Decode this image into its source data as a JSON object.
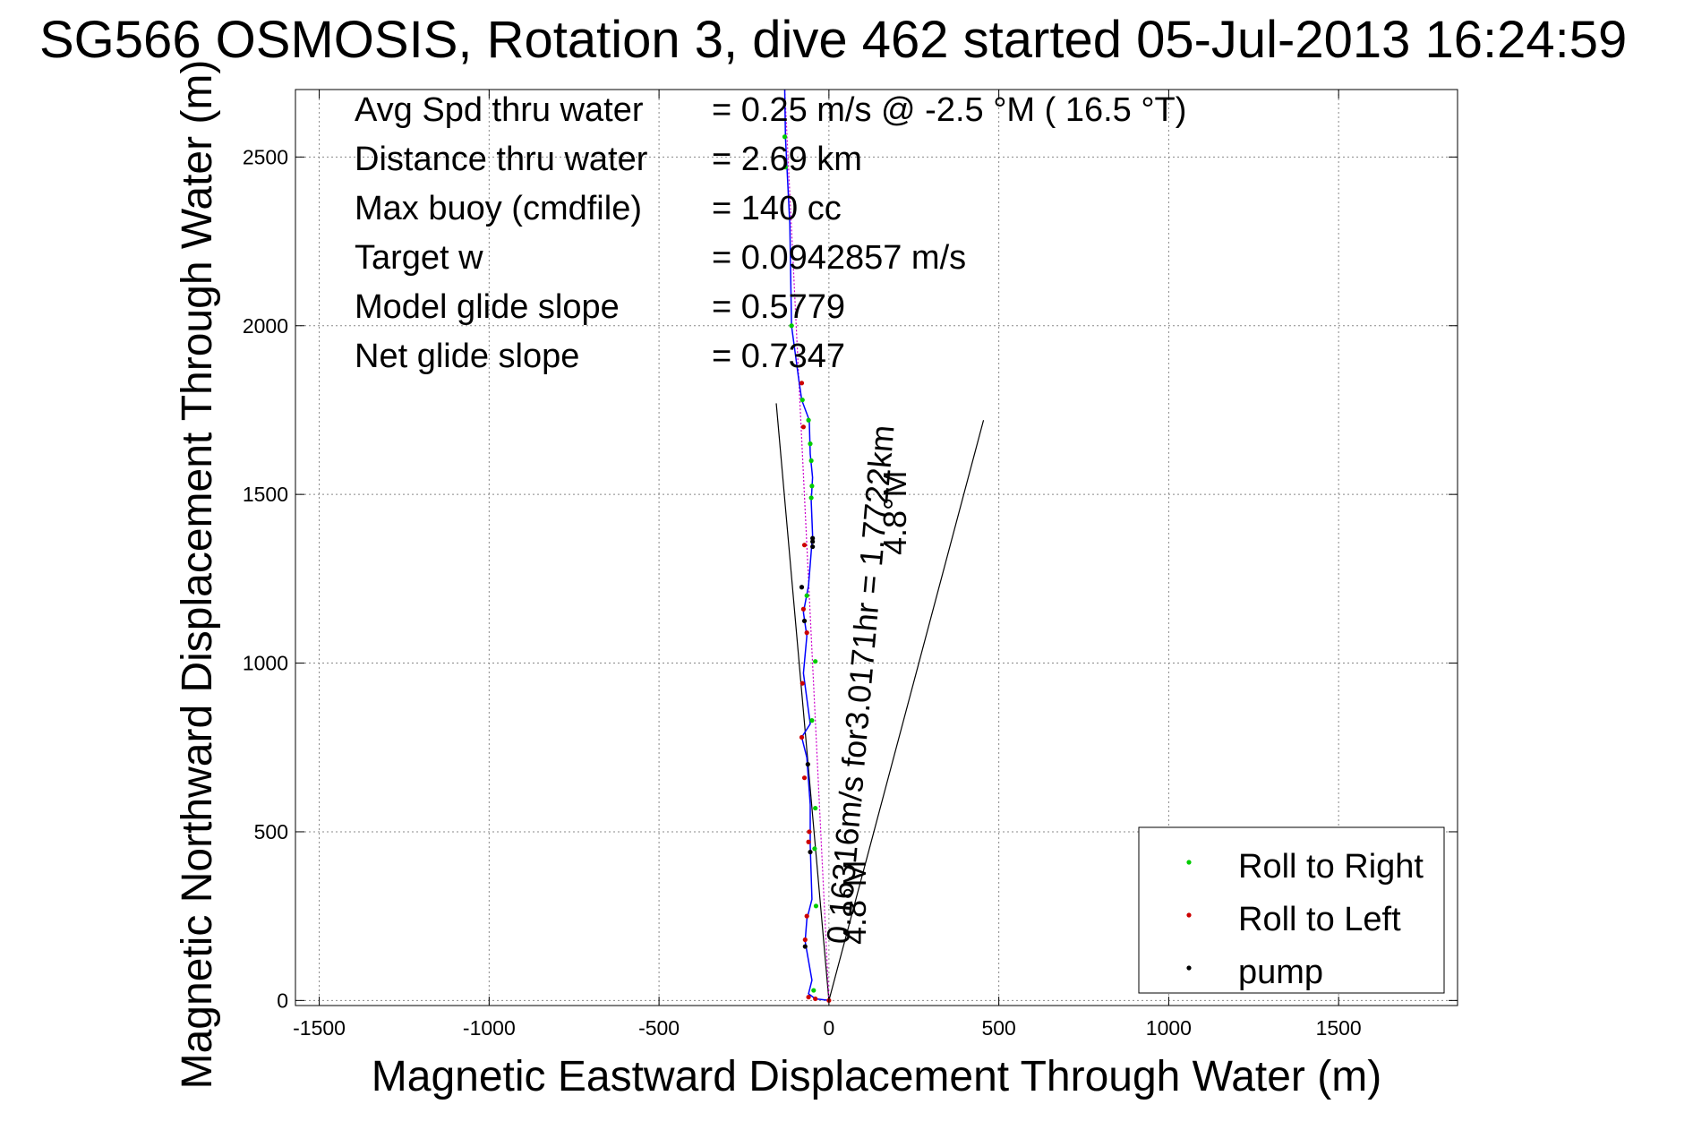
{
  "chart_data": {
    "type": "scatter",
    "title": "SG566 OSMOSIS, Rotation 3, dive 462 started 05-Jul-2013 16:24:59",
    "xlabel": "Magnetic Eastward Displacement Through Water (m)",
    "ylabel": "Magnetic Northward Displacement Through Water (m)",
    "xlim": [
      -1570,
      1850
    ],
    "ylim": [
      -15,
      2700
    ],
    "grid": true,
    "xticks": [
      -1500,
      -1000,
      -500,
      0,
      500,
      1000,
      1500
    ],
    "yticks": [
      0,
      500,
      1000,
      1500,
      2000,
      2500
    ],
    "xtick_labels": [
      "-1500",
      "-1000",
      "-500",
      "0",
      "500",
      "1000",
      "1500"
    ],
    "ytick_labels": [
      "0",
      "500",
      "1000",
      "1500",
      "2000",
      "2500"
    ],
    "colors": {
      "track": "#0000ff",
      "roll_right": "#00cc00",
      "roll_left": "#cc0000",
      "pump": "#000000",
      "bearing_line": "#cc00cc",
      "cone": "#000000"
    },
    "info_lines": [
      {
        "label": "Avg Spd thru water",
        "value": "=  0.25 m/s @  -2.5 °M ( 16.5 °T)"
      },
      {
        "label": "Distance thru water",
        "value": "=  2.69 km"
      },
      {
        "label": "Max buoy (cmdfile)",
        "value": "= 140 cc"
      },
      {
        "label": "Target w",
        "value": "= 0.0942857 m/s"
      },
      {
        "label": "Model glide slope",
        "value": "= 0.5779"
      },
      {
        "label": "Net glide slope",
        "value": "= 0.7347"
      }
    ],
    "annotations": {
      "current_text": "0.16316m/s for3.0171hr = 1.7722km",
      "current_heading_lower": "4.8°M",
      "current_heading_upper": "4.8°M"
    },
    "series": [
      {
        "name": "Roll to Right",
        "points": [
          [
            -130,
            2560
          ],
          [
            -128,
            2470
          ],
          [
            -110,
            2000
          ],
          [
            -78,
            1780
          ],
          [
            -60,
            1720
          ],
          [
            -55,
            1650
          ],
          [
            -52,
            1600
          ],
          [
            -50,
            1525
          ],
          [
            -52,
            1490
          ],
          [
            -65,
            1200
          ],
          [
            -40,
            1005
          ],
          [
            -50,
            830
          ],
          [
            -40,
            570
          ],
          [
            -42,
            450
          ],
          [
            -38,
            280
          ],
          [
            -45,
            30
          ]
        ]
      },
      {
        "name": "Roll to Left",
        "points": [
          [
            -80,
            1830
          ],
          [
            -75,
            1700
          ],
          [
            -72,
            1350
          ],
          [
            -75,
            1160
          ],
          [
            -65,
            1090
          ],
          [
            -78,
            940
          ],
          [
            -80,
            780
          ],
          [
            -72,
            660
          ],
          [
            -58,
            500
          ],
          [
            -60,
            470
          ],
          [
            -65,
            250
          ],
          [
            -70,
            180
          ],
          [
            -60,
            10
          ],
          [
            -40,
            5
          ],
          [
            0,
            0
          ]
        ]
      },
      {
        "name": "pump",
        "points": [
          [
            -48,
            1370
          ],
          [
            -48,
            1360
          ],
          [
            -48,
            1345
          ],
          [
            -80,
            1225
          ],
          [
            -72,
            1125
          ],
          [
            -62,
            700
          ],
          [
            -55,
            440
          ],
          [
            -70,
            160
          ]
        ]
      }
    ],
    "track": [
      [
        -130,
        2700
      ],
      [
        -128,
        2560
      ],
      [
        -115,
        2300
      ],
      [
        -110,
        2000
      ],
      [
        -90,
        1850
      ],
      [
        -80,
        1780
      ],
      [
        -58,
        1720
      ],
      [
        -55,
        1620
      ],
      [
        -48,
        1550
      ],
      [
        -52,
        1480
      ],
      [
        -48,
        1380
      ],
      [
        -60,
        1230
      ],
      [
        -75,
        1150
      ],
      [
        -65,
        1080
      ],
      [
        -75,
        970
      ],
      [
        -55,
        820
      ],
      [
        -80,
        780
      ],
      [
        -65,
        720
      ],
      [
        -55,
        580
      ],
      [
        -55,
        460
      ],
      [
        -50,
        300
      ],
      [
        -65,
        240
      ],
      [
        -70,
        175
      ],
      [
        -50,
        60
      ],
      [
        -60,
        20
      ],
      [
        -40,
        5
      ],
      [
        0,
        0
      ]
    ],
    "bearing_line": [
      [
        0,
        0
      ],
      [
        -130,
        2700
      ]
    ],
    "cone_lines": [
      [
        [
          0,
          0
        ],
        [
          -155,
          1770
        ]
      ],
      [
        [
          0,
          0
        ],
        [
          455,
          1720
        ]
      ]
    ]
  }
}
